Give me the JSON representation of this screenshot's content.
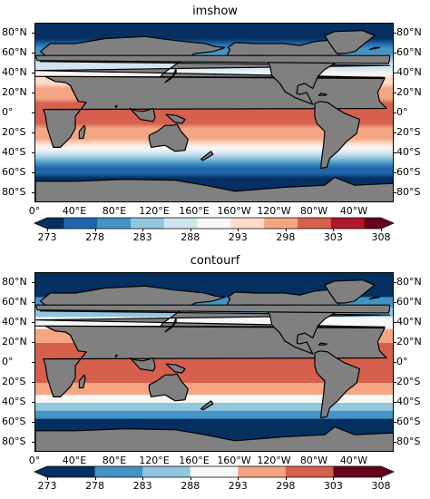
{
  "panels": [
    {
      "title": "imshow",
      "style": "smooth",
      "lat_labels": [
        "80°N",
        "60°N",
        "40°N",
        "20°N",
        "0°",
        "20°S",
        "40°S",
        "60°S",
        "80°S"
      ],
      "lon_labels": [
        "0°",
        "40°E",
        "80°E",
        "120°E",
        "160°E",
        "160°W",
        "120°W",
        "80°W",
        "40°W"
      ],
      "colorbar_ticks": [
        "273",
        "278",
        "283",
        "288",
        "293",
        "298",
        "303",
        "308"
      ]
    },
    {
      "title": "contourf",
      "style": "filled-contours",
      "lat_labels": [
        "80°N",
        "60°N",
        "40°N",
        "20°N",
        "0°",
        "20°S",
        "40°S",
        "60°S",
        "80°S"
      ],
      "lon_labels": [
        "0°",
        "40°E",
        "80°E",
        "120°E",
        "160°E",
        "160°W",
        "120°W",
        "80°W",
        "40°W"
      ],
      "colorbar_ticks": [
        "273",
        "278",
        "283",
        "288",
        "293",
        "298",
        "303",
        "308"
      ]
    }
  ],
  "colors": {
    "land": "#808080",
    "coast": "#000000",
    "cmap": [
      "#053061",
      "#2166ac",
      "#4393c3",
      "#92c5de",
      "#d1e5f0",
      "#f7f7f7",
      "#fddbc7",
      "#f4a582",
      "#d6604d",
      "#b2182b",
      "#67001f"
    ]
  },
  "chart_data": {
    "type": "heatmap",
    "value_range": [
      273,
      308
    ],
    "colormap": "RdBu_r",
    "zonal_profile": {
      "latitude": [
        90,
        80,
        70,
        60,
        50,
        40,
        30,
        20,
        10,
        0,
        -10,
        -20,
        -30,
        -40,
        -50,
        -60,
        -70,
        -80,
        -90
      ],
      "value": [
        271,
        273,
        276,
        281,
        286,
        290,
        295,
        298,
        300,
        301,
        300,
        298,
        294,
        288,
        281,
        275,
        272,
        271,
        271
      ]
    }
  }
}
